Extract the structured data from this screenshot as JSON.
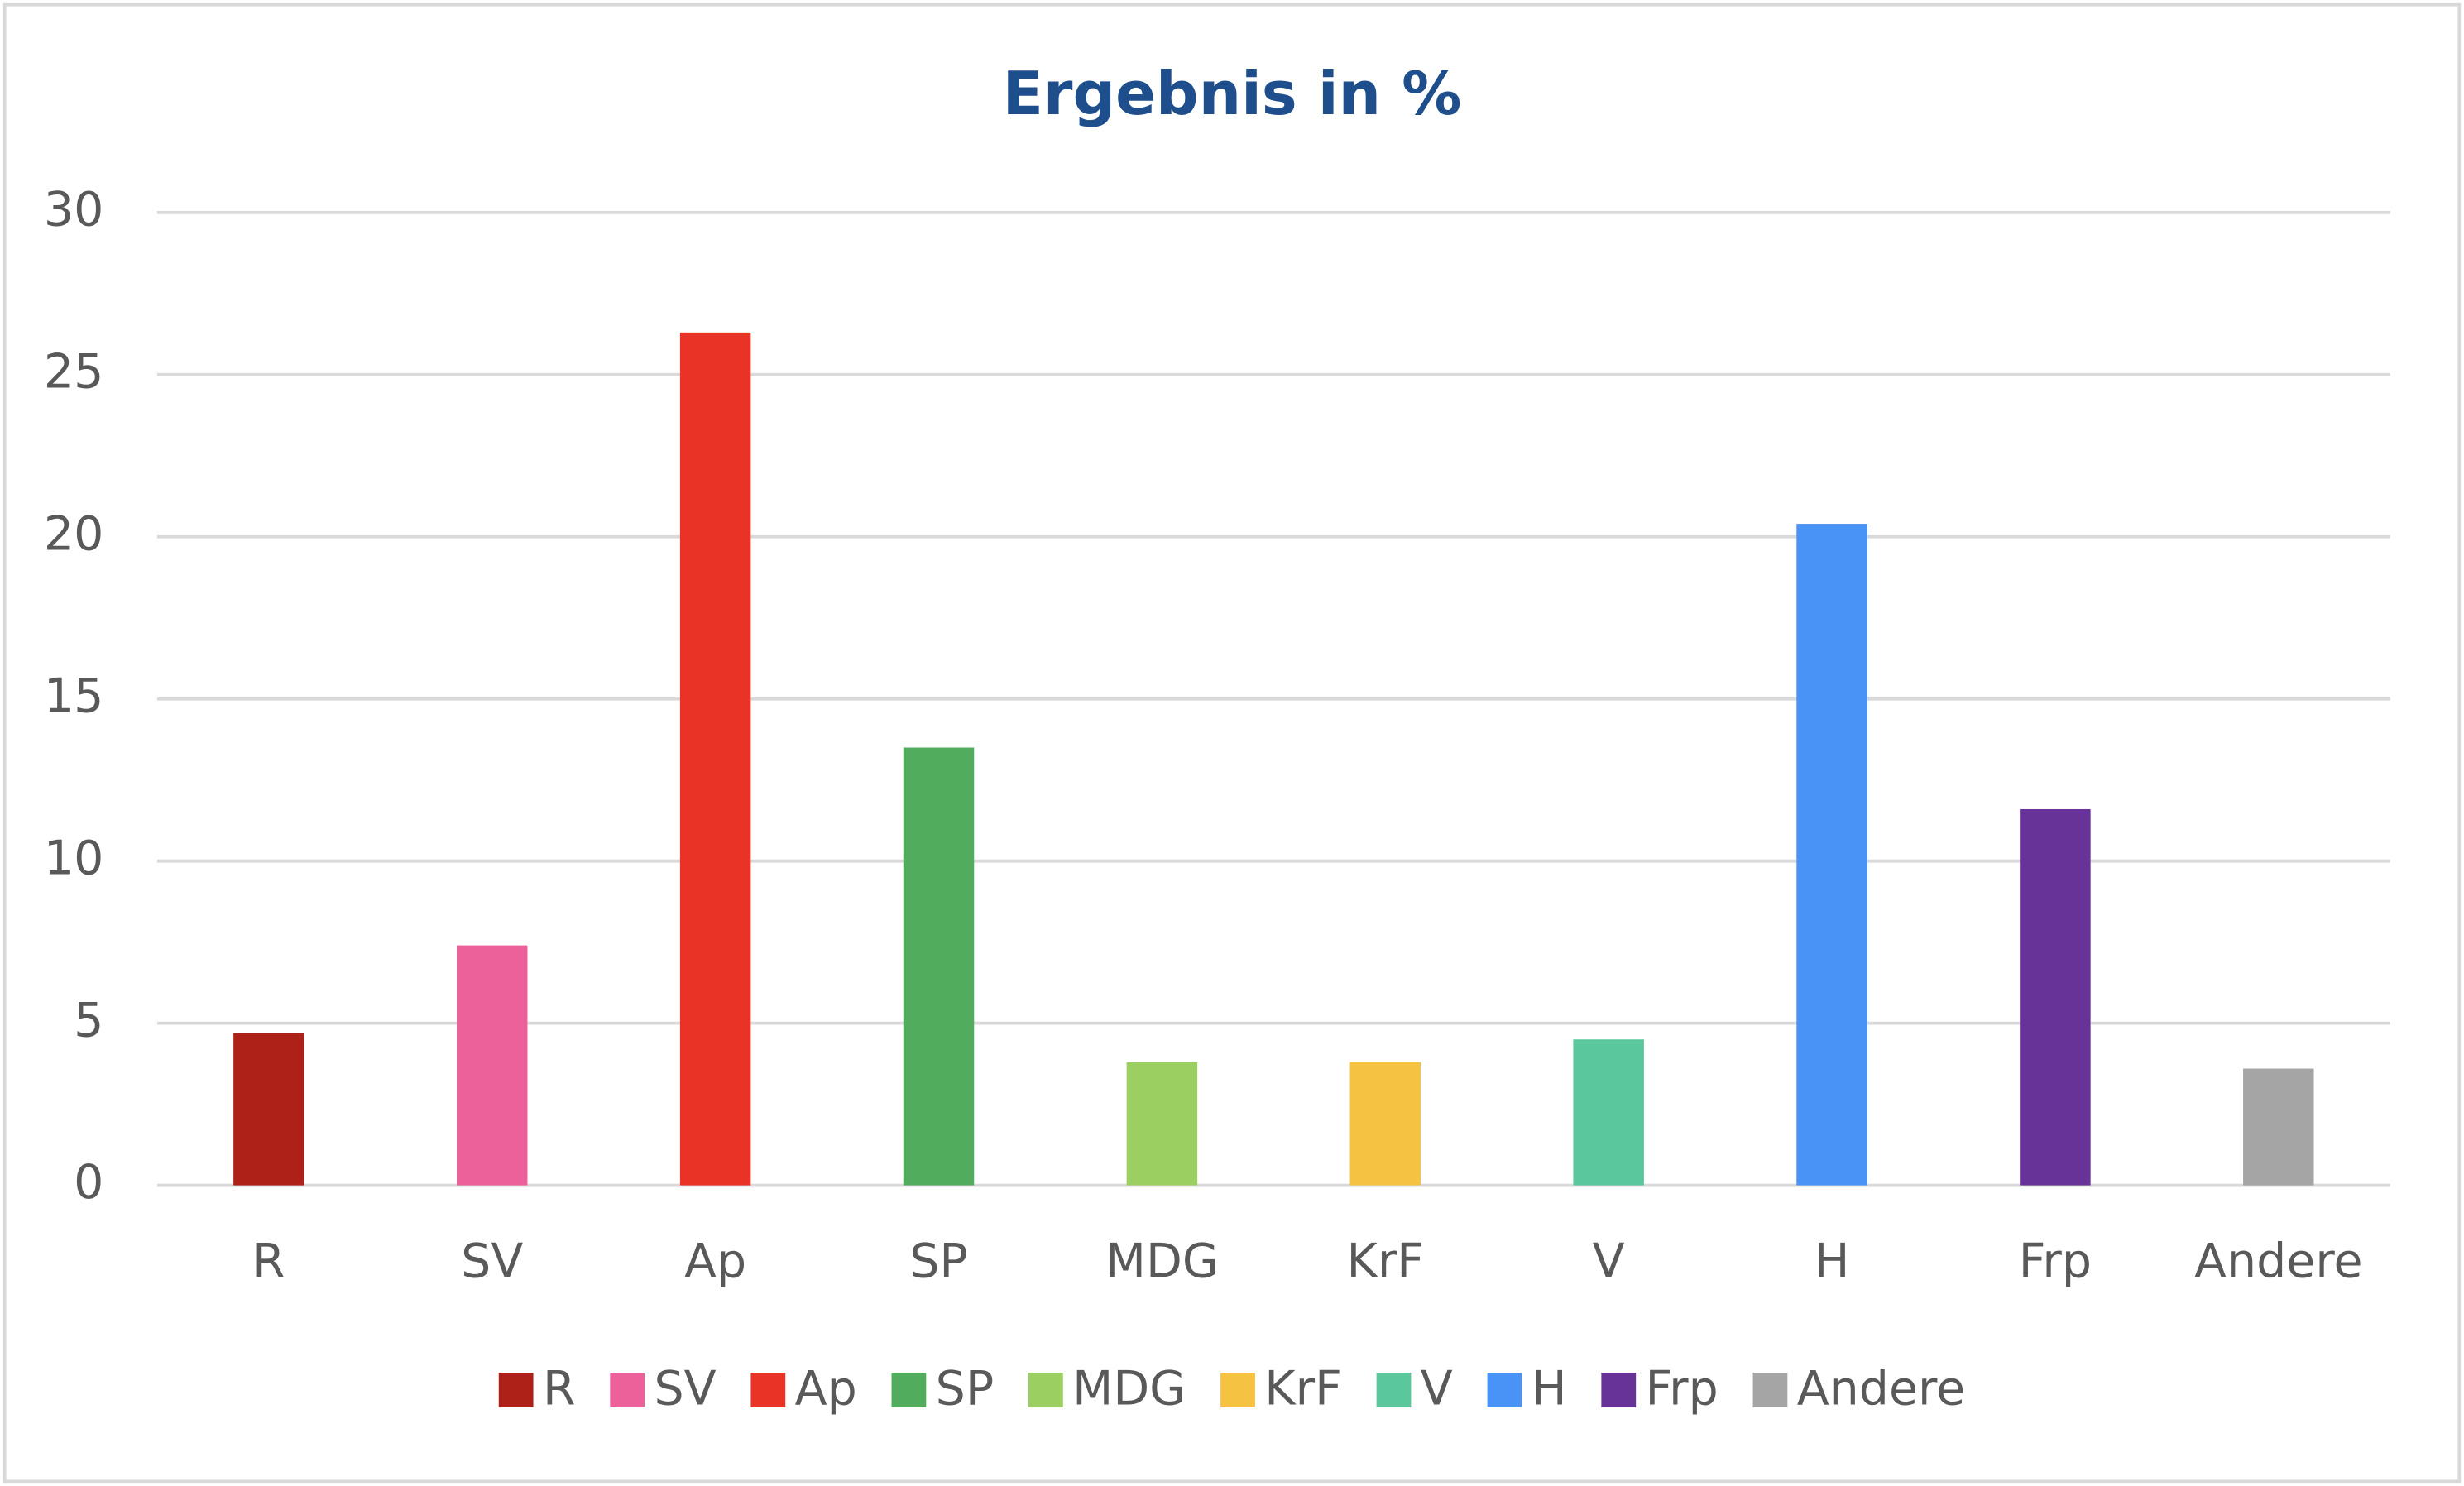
{
  "chart_data": {
    "type": "bar",
    "title": "Ergebnis in %",
    "categories": [
      "R",
      "SV",
      "Ap",
      "SP",
      "MDG",
      "KrF",
      "V",
      "H",
      "Frp",
      "Andere"
    ],
    "values": [
      4.7,
      7.4,
      26.3,
      13.5,
      3.8,
      3.8,
      4.5,
      20.4,
      11.6,
      3.6
    ],
    "colors": [
      "#ad2118",
      "#ec619a",
      "#e83326",
      "#52ac5e",
      "#9ccf62",
      "#f5c242",
      "#5ac89c",
      "#4893f5",
      "#673399",
      "#a5a5a5"
    ],
    "ylim": [
      0,
      30
    ],
    "yticks": [
      0,
      5,
      10,
      15,
      20,
      25,
      30
    ],
    "grid": true,
    "legend": "bottom"
  }
}
